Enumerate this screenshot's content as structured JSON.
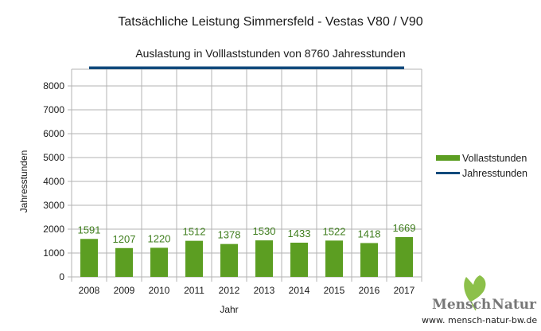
{
  "chart_data": {
    "type": "bar",
    "title": "Tatsächliche Leistung Simmersfeld - Vestas V80 / V90",
    "subtitle": "Auslastung in Volllaststunden von 8760 Jahresstunden",
    "xlabel": "Jahr",
    "ylabel": "Jahresstunden",
    "ylim": [
      0,
      8760
    ],
    "yticks": [
      "0",
      "1000",
      "2000",
      "3000",
      "4000",
      "5000",
      "6000",
      "7000",
      "8000"
    ],
    "ytick_values": [
      0,
      1000,
      2000,
      3000,
      4000,
      5000,
      6000,
      7000,
      8000
    ],
    "grid": true,
    "legend_position": "right",
    "categories": [
      "2008",
      "2009",
      "2010",
      "2011",
      "2012",
      "2013",
      "2014",
      "2015",
      "2016",
      "2017"
    ],
    "series": [
      {
        "name": "Vollaststunden",
        "type": "bar",
        "color": "#5c9e22",
        "values": [
          1591,
          1207,
          1220,
          1512,
          1378,
          1530,
          1433,
          1522,
          1418,
          1669
        ],
        "labels": [
          "1591",
          "1207",
          "1220",
          "1512",
          "1378",
          "1530",
          "1433",
          "1522",
          "1418",
          "1669"
        ]
      },
      {
        "name": "Jahresstunden",
        "type": "line",
        "color": "#114a7c",
        "values": [
          8760,
          8760,
          8760,
          8760,
          8760,
          8760,
          8760,
          8760,
          8760,
          8760
        ]
      }
    ]
  },
  "branding": {
    "logo_text_1": "Mensch",
    "logo_text_2": "Natur",
    "url": "www. mensch-natur-bw.de",
    "leaf_color": "#8cc04a"
  }
}
